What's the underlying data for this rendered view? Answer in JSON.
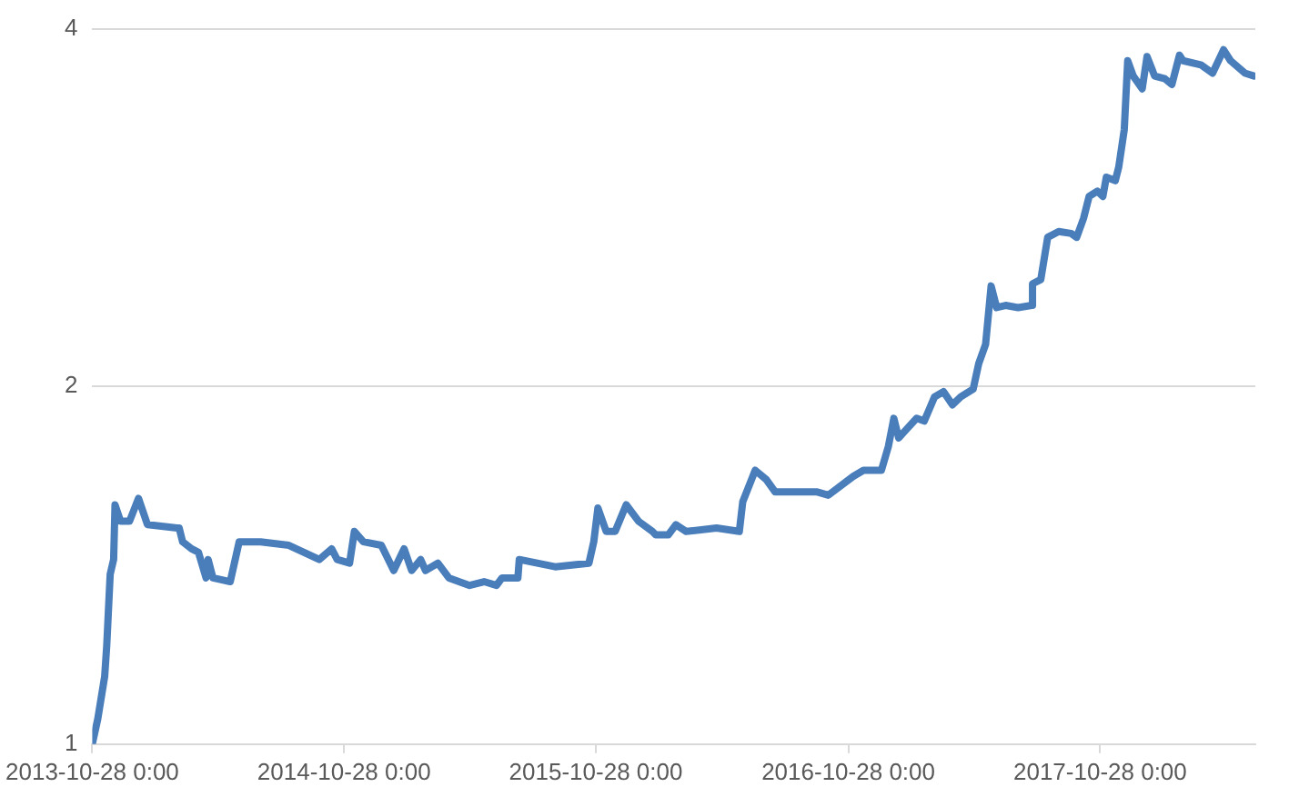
{
  "chart_data": {
    "type": "line",
    "log": "y",
    "grid": "y",
    "xlim": [
      "2013-10-28",
      "2018-06-10"
    ],
    "ylim": [
      1,
      4
    ],
    "yticks": [
      1,
      2,
      4
    ],
    "xticks": [
      {
        "value": "2013-10-28",
        "label": "2013-10-28 0:00"
      },
      {
        "value": "2014-10-28",
        "label": "2014-10-28 0:00"
      },
      {
        "value": "2015-10-28",
        "label": "2015-10-28 0:00"
      },
      {
        "value": "2016-10-28",
        "label": "2016-10-28 0:00"
      },
      {
        "value": "2017-10-28",
        "label": "2017-10-28 0:00"
      }
    ],
    "x": [
      "2013-10-28",
      "2013-11-05",
      "2013-11-15",
      "2013-11-18",
      "2013-11-23",
      "2013-11-28",
      "2013-11-30",
      "2013-12-08",
      "2013-12-21",
      "2014-01-03",
      "2014-01-16",
      "2014-02-28",
      "2014-03-03",
      "2014-03-08",
      "2014-03-21",
      "2014-03-31",
      "2014-04-11",
      "2014-04-14",
      "2014-04-21",
      "2014-05-16",
      "2014-05-29",
      "2014-06-29",
      "2014-08-09",
      "2014-09-22",
      "2014-10-10",
      "2014-10-18",
      "2014-11-05",
      "2014-11-12",
      "2014-11-25",
      "2014-12-21",
      "2015-01-08",
      "2015-01-23",
      "2015-02-03",
      "2015-02-16",
      "2015-02-23",
      "2015-03-13",
      "2015-03-29",
      "2015-04-28",
      "2015-05-19",
      "2015-06-06",
      "2015-06-14",
      "2015-07-07",
      "2015-07-09",
      "2015-08-30",
      "2015-10-18",
      "2015-10-25",
      "2015-10-31",
      "2015-11-12",
      "2015-11-25",
      "2015-12-11",
      "2015-12-29",
      "2016-01-18",
      "2016-01-23",
      "2016-02-10",
      "2016-02-21",
      "2016-03-07",
      "2016-04-20",
      "2016-05-23",
      "2016-05-28",
      "2016-06-15",
      "2016-07-01",
      "2016-07-14",
      "2016-09-13",
      "2016-09-29",
      "2016-11-04",
      "2016-11-19",
      "2016-12-15",
      "2016-12-25",
      "2017-01-02",
      "2017-01-09",
      "2017-01-20",
      "2017-02-04",
      "2017-02-15",
      "2017-03-02",
      "2017-03-15",
      "2017-03-28",
      "2017-04-09",
      "2017-04-27",
      "2017-05-05",
      "2017-05-15",
      "2017-05-23",
      "2017-05-31",
      "2017-06-13",
      "2017-07-01",
      "2017-07-21",
      "2017-07-22",
      "2017-08-03",
      "2017-08-13",
      "2017-08-29",
      "2017-09-16",
      "2017-09-24",
      "2017-10-04",
      "2017-10-12",
      "2017-10-24",
      "2017-11-01",
      "2017-11-06",
      "2017-11-19",
      "2017-11-24",
      "2017-12-02",
      "2017-12-07",
      "2017-12-15",
      "2017-12-28",
      "2018-01-04",
      "2018-01-15",
      "2018-01-30",
      "2018-02-09",
      "2018-02-20",
      "2018-02-25",
      "2018-03-23",
      "2018-04-09",
      "2018-04-25",
      "2018-05-05",
      "2018-05-26",
      "2018-06-08"
    ],
    "series": [
      {
        "color": "#4a7ebb",
        "values": [
          1.0,
          1.05,
          1.14,
          1.21,
          1.39,
          1.43,
          1.59,
          1.54,
          1.54,
          1.61,
          1.53,
          1.52,
          1.52,
          1.48,
          1.46,
          1.45,
          1.38,
          1.43,
          1.38,
          1.37,
          1.48,
          1.48,
          1.47,
          1.43,
          1.46,
          1.43,
          1.42,
          1.51,
          1.48,
          1.47,
          1.4,
          1.46,
          1.4,
          1.43,
          1.4,
          1.42,
          1.38,
          1.36,
          1.37,
          1.36,
          1.38,
          1.38,
          1.43,
          1.41,
          1.42,
          1.48,
          1.58,
          1.51,
          1.51,
          1.59,
          1.54,
          1.51,
          1.5,
          1.5,
          1.53,
          1.51,
          1.52,
          1.51,
          1.6,
          1.7,
          1.67,
          1.63,
          1.63,
          1.62,
          1.68,
          1.7,
          1.7,
          1.78,
          1.88,
          1.81,
          1.84,
          1.88,
          1.87,
          1.96,
          1.98,
          1.93,
          1.96,
          1.99,
          2.09,
          2.17,
          2.43,
          2.33,
          2.34,
          2.33,
          2.34,
          2.44,
          2.46,
          2.67,
          2.7,
          2.69,
          2.67,
          2.77,
          2.89,
          2.92,
          2.89,
          3.0,
          2.98,
          3.06,
          3.29,
          3.76,
          3.65,
          3.56,
          3.79,
          3.65,
          3.63,
          3.59,
          3.8,
          3.76,
          3.73,
          3.67,
          3.84,
          3.76,
          3.67,
          3.65
        ]
      }
    ]
  }
}
